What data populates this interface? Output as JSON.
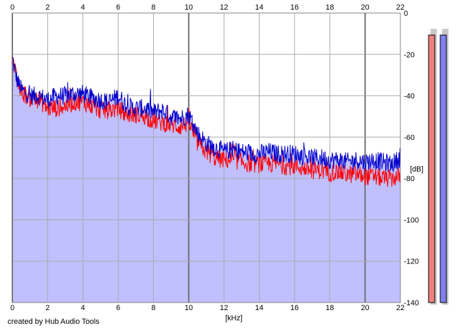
{
  "footer": {
    "credit": "created by Hub Audio Tools"
  },
  "chart_data": {
    "type": "line",
    "title": "",
    "xlabel": "[kHz]",
    "ylabel": "[dB]",
    "xlim": [
      0,
      22
    ],
    "ylim": [
      -140,
      0
    ],
    "x_ticks": [
      0,
      2,
      4,
      6,
      8,
      10,
      12,
      14,
      16,
      18,
      20,
      22
    ],
    "y_ticks": [
      0,
      -20,
      -40,
      -60,
      -80,
      -100,
      -120,
      -140
    ],
    "grid": true,
    "fill_color": "#c0c0ff",
    "series": [
      {
        "color": "#0000cc",
        "x": [
          0,
          0.25,
          0.5,
          1,
          1.5,
          2,
          2.5,
          3,
          3.5,
          4,
          4.5,
          5,
          5.5,
          6,
          6.5,
          7,
          7.5,
          8,
          8.5,
          9,
          9.5,
          10,
          10.5,
          11,
          11.5,
          12,
          12.5,
          13,
          13.5,
          14,
          14.5,
          15,
          15.5,
          16,
          16.5,
          17,
          17.5,
          18,
          18.5,
          19,
          19.5,
          20,
          20.5,
          21,
          21.5,
          22
        ],
        "values": [
          -22,
          -32,
          -37,
          -40,
          -40,
          -42,
          -40,
          -40,
          -39,
          -39,
          -41,
          -42,
          -43,
          -40,
          -45,
          -46,
          -46,
          -48,
          -47,
          -50,
          -51,
          -49,
          -58,
          -63,
          -65,
          -67,
          -66,
          -67,
          -68,
          -68,
          -67,
          -68,
          -68,
          -68,
          -69,
          -70,
          -70,
          -71,
          -71,
          -72,
          -71,
          -72,
          -71,
          -72,
          -73,
          -70
        ]
      },
      {
        "color": "#ff0000",
        "x": [
          0,
          0.25,
          0.5,
          1,
          1.5,
          2,
          2.5,
          3,
          3.5,
          4,
          4.5,
          5,
          5.5,
          6,
          6.5,
          7,
          7.5,
          8,
          8.5,
          9,
          9.5,
          10,
          10.5,
          11,
          11.5,
          12,
          12.5,
          13,
          13.5,
          14,
          14.5,
          15,
          15.5,
          16,
          16.5,
          17,
          17.5,
          18,
          18.5,
          19,
          19.5,
          20,
          20.5,
          21,
          21.5,
          22
        ],
        "values": [
          -21,
          -33,
          -38,
          -41,
          -42,
          -46,
          -46,
          -45,
          -43,
          -43,
          -45,
          -47,
          -47,
          -46,
          -49,
          -49,
          -50,
          -52,
          -53,
          -54,
          -55,
          -53,
          -63,
          -67,
          -70,
          -71,
          -71,
          -72,
          -73,
          -73,
          -73,
          -73,
          -74,
          -74,
          -75,
          -76,
          -76,
          -77,
          -77,
          -78,
          -78,
          -79,
          -79,
          -80,
          -80,
          -79
        ]
      }
    ],
    "level_meters": [
      {
        "color": "#f08080",
        "value": -6
      },
      {
        "color": "#8080f0",
        "value": -6
      }
    ]
  }
}
